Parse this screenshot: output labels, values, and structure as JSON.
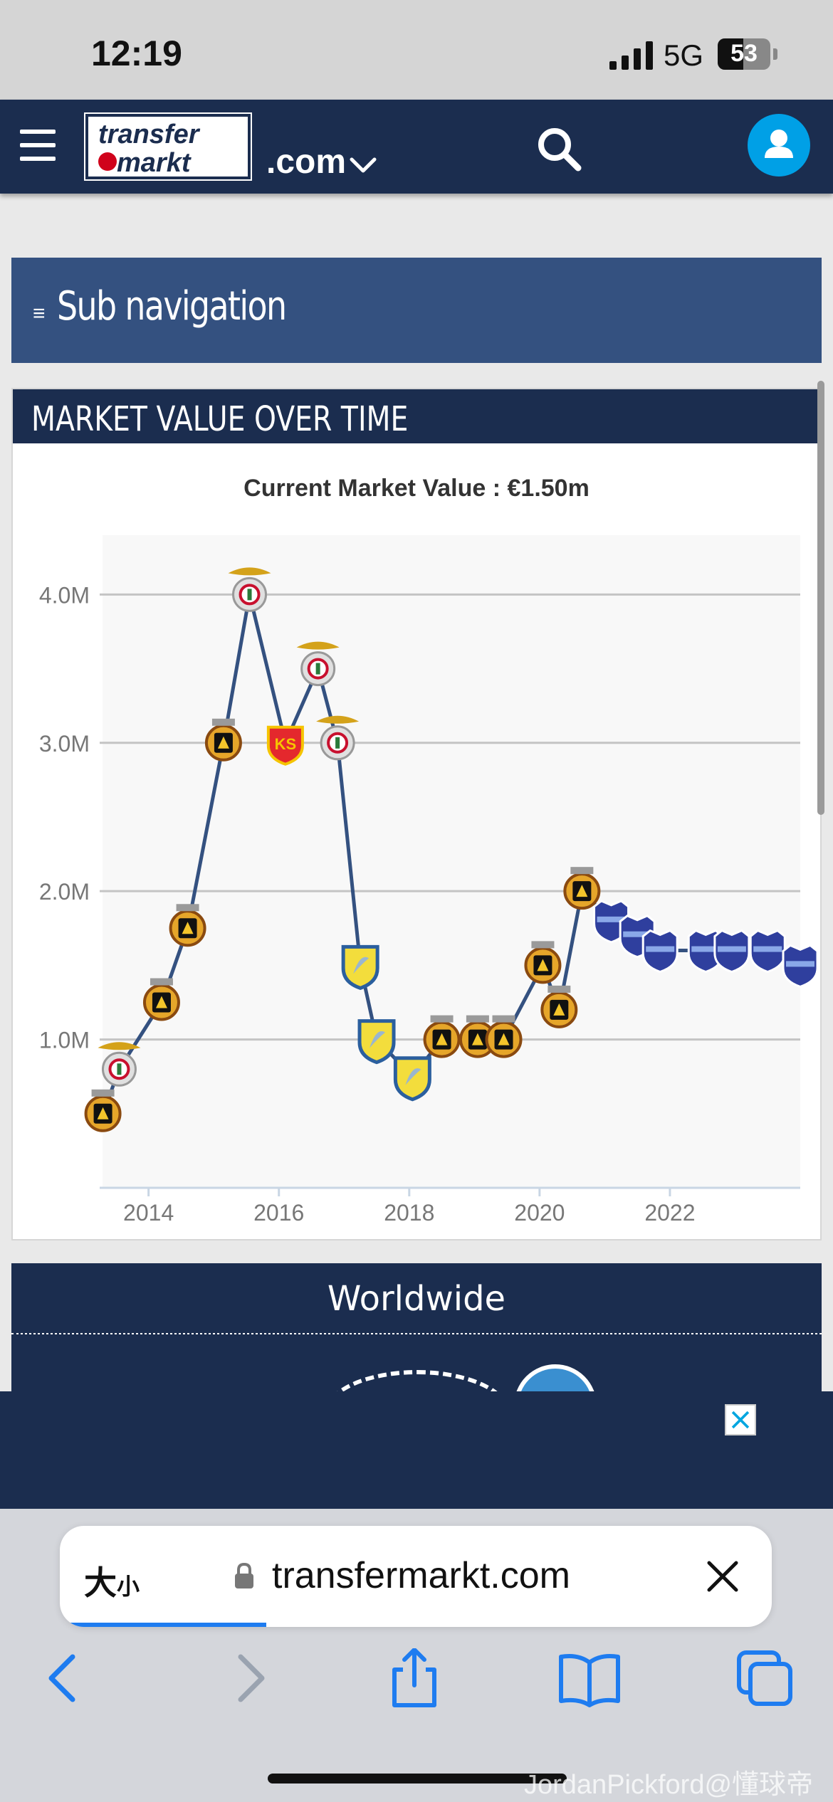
{
  "status_bar": {
    "time": "12:19",
    "network": "5G",
    "battery": "53"
  },
  "header": {
    "logo_line1": "transfer",
    "logo_line2": "markt",
    "domain": ".com"
  },
  "subnav": {
    "label": "Sub navigation"
  },
  "market_value_card": {
    "title": "MARKET VALUE OVER TIME",
    "current_value": "Current Market Value : €1.50m"
  },
  "chart_data": {
    "type": "line",
    "title": "Current Market Value : €1.50m",
    "xlabel": "",
    "ylabel": "",
    "x_ticks": [
      "2014",
      "2016",
      "2018",
      "2020",
      "2022"
    ],
    "y_ticks": [
      "1.0M",
      "2.0M",
      "3.0M",
      "4.0M"
    ],
    "xlim": [
      2013.25,
      2024.0
    ],
    "ylim": [
      0,
      4.4
    ],
    "grid": true,
    "series": [
      {
        "color": "#345180",
        "points": [
          {
            "x": 2013.3,
            "y": 0.5,
            "club": "rio-ave"
          },
          {
            "x": 2013.55,
            "y": 0.8,
            "club": "benfica"
          },
          {
            "x": 2014.2,
            "y": 1.25,
            "club": "rio-ave"
          },
          {
            "x": 2014.6,
            "y": 1.75,
            "club": "rio-ave"
          },
          {
            "x": 2015.15,
            "y": 3.0,
            "club": "rio-ave"
          },
          {
            "x": 2015.55,
            "y": 4.0,
            "club": "benfica"
          },
          {
            "x": 2016.1,
            "y": 3.0,
            "club": "kayserispor"
          },
          {
            "x": 2016.6,
            "y": 3.5,
            "club": "benfica"
          },
          {
            "x": 2016.9,
            "y": 3.0,
            "club": "benfica"
          },
          {
            "x": 2017.25,
            "y": 1.5,
            "club": "estoril"
          },
          {
            "x": 2017.5,
            "y": 1.0,
            "club": "estoril"
          },
          {
            "x": 2018.05,
            "y": 0.75,
            "club": "estoril"
          },
          {
            "x": 2018.5,
            "y": 1.0,
            "club": "rio-ave"
          },
          {
            "x": 2019.05,
            "y": 1.0,
            "club": "rio-ave"
          },
          {
            "x": 2019.45,
            "y": 1.0,
            "club": "rio-ave"
          },
          {
            "x": 2020.05,
            "y": 1.5,
            "club": "rio-ave"
          },
          {
            "x": 2020.3,
            "y": 1.2,
            "club": "rio-ave"
          },
          {
            "x": 2020.65,
            "y": 2.0,
            "club": "rio-ave"
          },
          {
            "x": 2021.1,
            "y": 1.8,
            "club": "galaxy"
          },
          {
            "x": 2021.5,
            "y": 1.7,
            "club": "galaxy"
          },
          {
            "x": 2021.85,
            "y": 1.6,
            "club": "galaxy"
          },
          {
            "x": 2022.55,
            "y": 1.6,
            "club": "galaxy"
          },
          {
            "x": 2022.95,
            "y": 1.6,
            "club": "galaxy"
          },
          {
            "x": 2023.5,
            "y": 1.6,
            "club": "galaxy"
          },
          {
            "x": 2024.0,
            "y": 1.5,
            "club": "galaxy"
          }
        ]
      }
    ]
  },
  "worldwide": {
    "label": "Worldwide"
  },
  "browser": {
    "text_size_label": "大",
    "text_size_small": "小",
    "url": "transfermarkt.com",
    "load_progress": 0.29
  },
  "watermark": "JordanPickford@懂球帝",
  "colors": {
    "navy": "#1b2d4f",
    "subnav_blue": "#345180",
    "accent_blue": "#00a0e6",
    "safari_blue": "#1e7cf0"
  }
}
